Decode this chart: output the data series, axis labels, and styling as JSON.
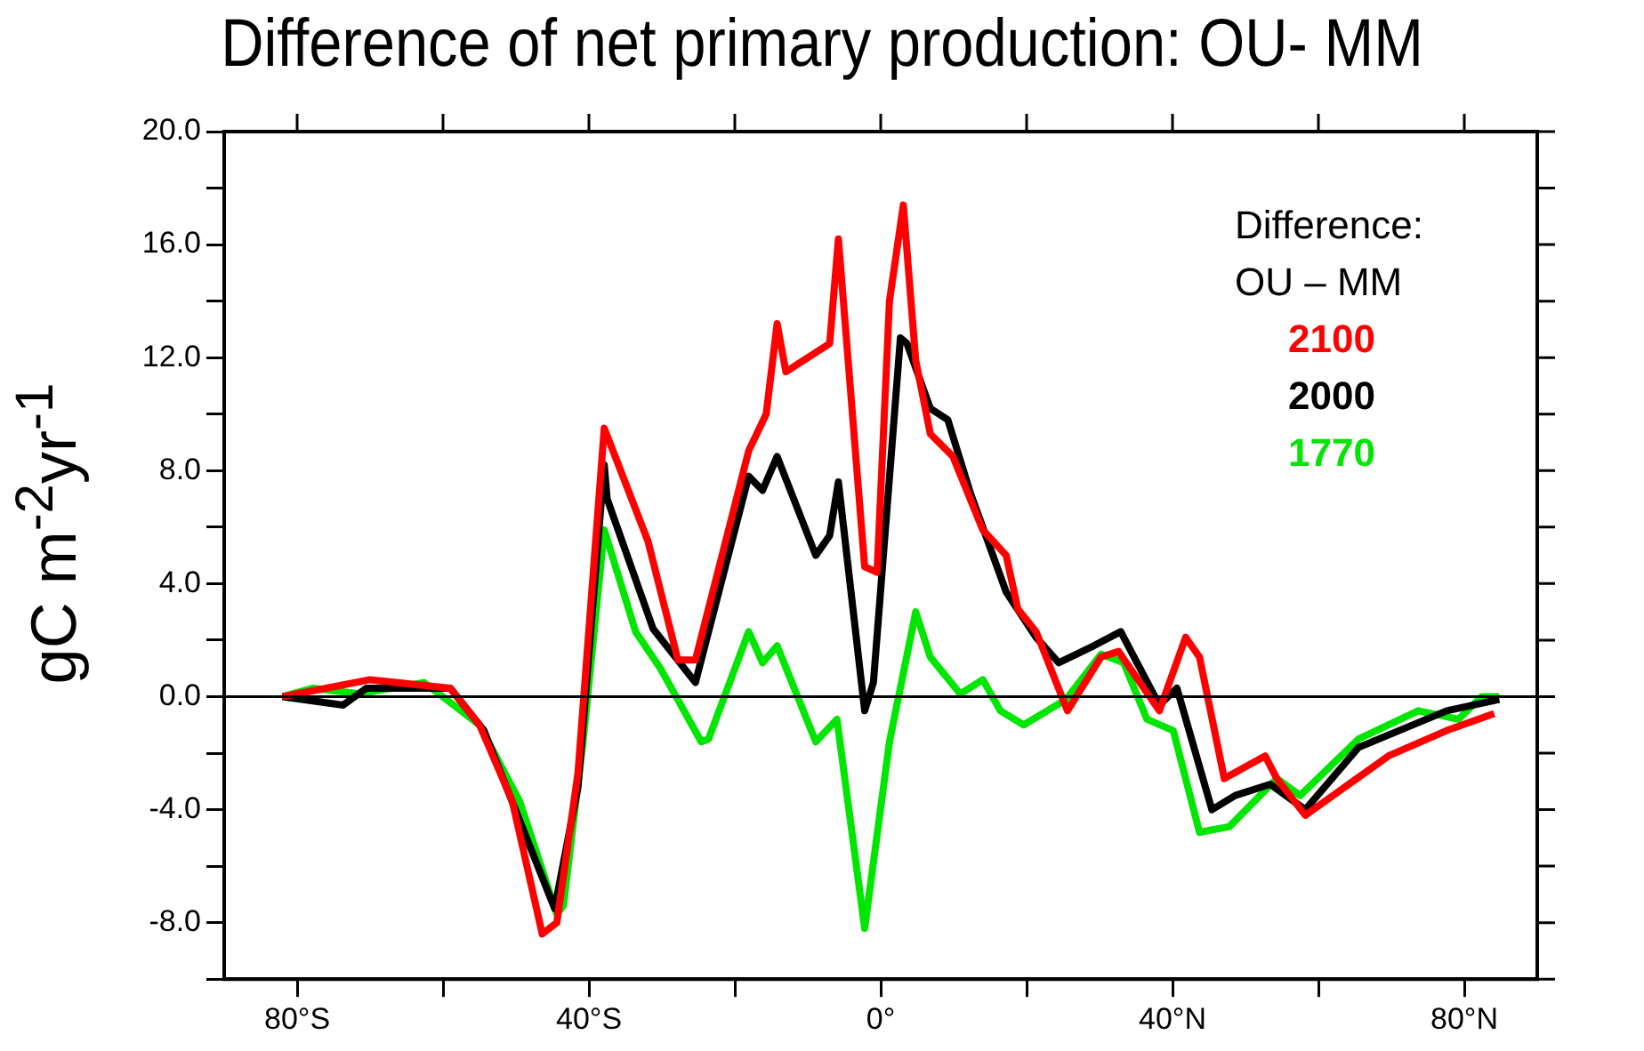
{
  "chart_data": {
    "type": "line",
    "title": "Difference of net primary production: OU- MM",
    "ylabel": "gC m$^{-2}$yr$^{-1}$",
    "legend_title": "Difference:\nOU – MM",
    "legend": "top right",
    "grid": false,
    "marker": "none",
    "line_style": "solid",
    "xlim": [
      -90,
      90
    ],
    "xticks": [
      {
        "value": -80,
        "label": "80°S"
      },
      {
        "value": -60,
        "label": null
      },
      {
        "value": -40,
        "label": "40°S"
      },
      {
        "value": -20,
        "label": null
      },
      {
        "value": 0,
        "label": "0°"
      },
      {
        "value": 20,
        "label": null
      },
      {
        "value": 40,
        "label": "40°N"
      },
      {
        "value": 60,
        "label": null
      },
      {
        "value": 80,
        "label": "80°N"
      }
    ],
    "ylim": [
      -10,
      20
    ],
    "yticks": [
      {
        "value": -10,
        "label": null
      },
      {
        "value": -8,
        "label": "-8.0"
      },
      {
        "value": -6,
        "label": null
      },
      {
        "value": -4,
        "label": "-4.0"
      },
      {
        "value": -2,
        "label": null
      },
      {
        "value": 0,
        "label": "0.0"
      },
      {
        "value": 2,
        "label": null
      },
      {
        "value": 4,
        "label": "4.0"
      },
      {
        "value": 6,
        "label": null
      },
      {
        "value": 8,
        "label": "8.0"
      },
      {
        "value": 10,
        "label": null
      },
      {
        "value": 12,
        "label": "12.0"
      },
      {
        "value": 14,
        "label": null
      },
      {
        "value": 16,
        "label": "16.0"
      },
      {
        "value": 18,
        "label": null
      },
      {
        "value": 20,
        "label": "20.0"
      }
    ],
    "ref_lines": [
      {
        "axis": "y",
        "value": 0,
        "color": "#000000"
      }
    ],
    "series": [
      {
        "name": "2100",
        "color": "#ff0000",
        "x": [
          -82,
          -70,
          -59,
          -55,
          -50.5,
          -46.4,
          -44.4,
          -41.5,
          -37.9,
          -31.9,
          -27.8,
          -25.4,
          -18.1,
          -15.7,
          -14.2,
          -13,
          -7,
          -5.8,
          -2.2,
          -0.5,
          1.2,
          3.1,
          4.8,
          6.8,
          9.9,
          14,
          17.2,
          18.8,
          21.3,
          25.6,
          30.2,
          32.6,
          38.2,
          41.8,
          43.7,
          47.1,
          52.7,
          54.3,
          58.2,
          63.1,
          69.6,
          77.6,
          84.1
        ],
        "values": [
          0,
          0.6,
          0.3,
          -1.0,
          -3.7,
          -8.4,
          -8.0,
          -2.7,
          9.5,
          5.5,
          1.3,
          1.3,
          8.7,
          10.0,
          13.2,
          11.5,
          12.5,
          16.2,
          4.6,
          4.4,
          14.0,
          17.4,
          11.9,
          9.3,
          8.5,
          5.9,
          5.0,
          3.1,
          2.3,
          -0.5,
          1.4,
          1.6,
          -0.5,
          2.1,
          1.4,
          -2.9,
          -2.1,
          -2.9,
          -4.2,
          -3.3,
          -2.1,
          -1.2,
          -0.6
        ]
      },
      {
        "name": "2000",
        "color": "#000000",
        "x": [
          -82,
          -73.7,
          -70.5,
          -59,
          -54.4,
          -44.7,
          -41.5,
          -37.9,
          -37.5,
          -31.2,
          -25.4,
          -18.1,
          -16.2,
          -14.2,
          -8.9,
          -7,
          -5.8,
          -2.2,
          -1,
          2.7,
          3.6,
          6.8,
          9.2,
          12.3,
          17.2,
          21.3,
          24.4,
          29.2,
          32.9,
          38.2,
          40.6,
          45.4,
          48.6,
          53.4,
          58.2,
          65.5,
          77.6,
          84.8
        ],
        "values": [
          0,
          -0.3,
          0.3,
          0.3,
          -1.2,
          -7.5,
          -3.2,
          8.2,
          7.0,
          2.4,
          0.5,
          7.8,
          7.3,
          8.5,
          5.0,
          5.7,
          7.6,
          -0.5,
          0.5,
          12.7,
          12.5,
          10.2,
          9.8,
          7.2,
          3.7,
          2.1,
          1.2,
          1.8,
          2.3,
          -0.3,
          0.3,
          -4.0,
          -3.5,
          -3.1,
          -4.0,
          -1.8,
          -0.5,
          -0.1
        ]
      },
      {
        "name": "1770",
        "color": "#00e600",
        "x": [
          -82,
          -77.8,
          -71.5,
          -62.6,
          -55,
          -49.5,
          -44.4,
          -43.5,
          -40.8,
          -37.9,
          -33.6,
          -30.2,
          -24.6,
          -23.6,
          -18.1,
          -16.2,
          -14.2,
          -8.9,
          -6,
          -2.2,
          1.2,
          4.8,
          6.8,
          10.9,
          14,
          16.4,
          19.6,
          25.4,
          30.2,
          33.3,
          36.5,
          40.1,
          43.7,
          47.8,
          54.3,
          57.5,
          65.5,
          73.7,
          79.2,
          82.4,
          84.8
        ],
        "values": [
          0,
          0.3,
          0.1,
          0.5,
          -1.0,
          -3.7,
          -7.7,
          -7.4,
          -1.6,
          5.9,
          2.3,
          1.0,
          -1.6,
          -1.5,
          2.3,
          1.2,
          1.8,
          -1.6,
          -0.8,
          -8.2,
          -1.6,
          3.0,
          1.4,
          0.1,
          0.6,
          -0.5,
          -1.0,
          -0.1,
          1.5,
          1.2,
          -0.8,
          -1.2,
          -4.8,
          -4.6,
          -2.9,
          -3.5,
          -1.5,
          -0.5,
          -0.8,
          0,
          0
        ]
      }
    ]
  }
}
